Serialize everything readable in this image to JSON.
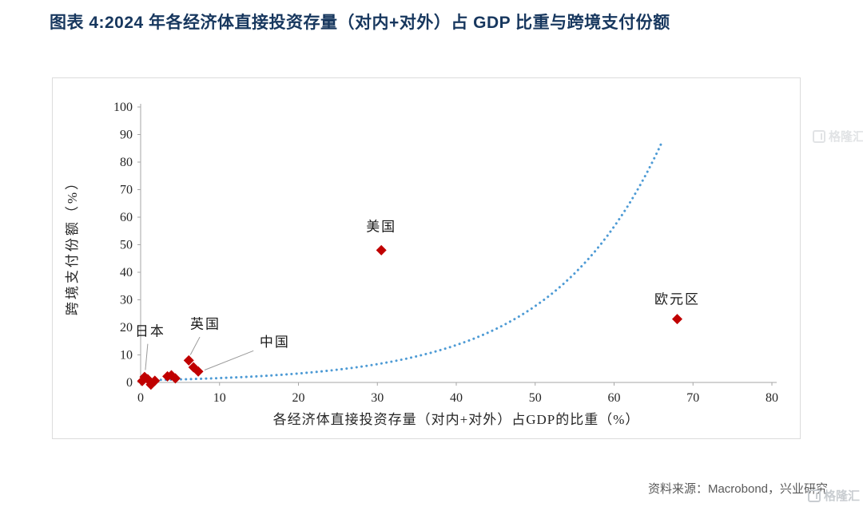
{
  "title": "图表  4:2024 年各经济体直接投资存量（对内+对外）占 GDP 比重与跨境支付份额",
  "source": "资料来源：Macrobond，兴业研究",
  "watermark": "格隆汇",
  "chart_data": {
    "type": "scatter",
    "title": "",
    "xlabel": "各经济体直接投资存量（对内+对外）占GDP的比重（%）",
    "ylabel": "跨境支付份额（%）",
    "xlim": [
      0,
      80
    ],
    "ylim": [
      0,
      100
    ],
    "xticks": [
      0,
      10,
      20,
      30,
      40,
      50,
      60,
      70,
      80
    ],
    "yticks": [
      0,
      10,
      20,
      30,
      40,
      50,
      60,
      70,
      80,
      90,
      100
    ],
    "grid": false,
    "marker_color": "#C00000",
    "trend_color": "#4E9BD5",
    "axis_color": "#A6A6A6",
    "points": [
      {
        "x": 0.2,
        "y": 0.5
      },
      {
        "x": 0.5,
        "y": 2.0
      },
      {
        "x": 0.9,
        "y": 1.2
      },
      {
        "x": 1.3,
        "y": -0.8
      },
      {
        "x": 1.8,
        "y": 0.6
      },
      {
        "x": 3.4,
        "y": 2.2
      },
      {
        "x": 3.9,
        "y": 2.6
      },
      {
        "x": 4.4,
        "y": 1.5
      },
      {
        "x": 6.1,
        "y": 8.0
      },
      {
        "x": 6.7,
        "y": 5.5
      },
      {
        "x": 7.3,
        "y": 4.0
      },
      {
        "x": 30.5,
        "y": 48.0
      },
      {
        "x": 68.0,
        "y": 23.0
      }
    ],
    "annotations": [
      {
        "text": "日本",
        "x": 1.2,
        "y": 17.0,
        "anchor": "middle",
        "leader": {
          "x1": 0.9,
          "y1": 14.0,
          "x2": 0.6,
          "y2": 4.5
        }
      },
      {
        "text": "英国",
        "x": 8.2,
        "y": 19.5,
        "anchor": "middle",
        "leader": {
          "x1": 7.5,
          "y1": 16.5,
          "x2": 6.3,
          "y2": 10.0
        }
      },
      {
        "text": "中国",
        "x": 17.0,
        "y": 13.0,
        "anchor": "middle",
        "leader": {
          "x1": 14.3,
          "y1": 11.5,
          "x2": 8.1,
          "y2": 4.5
        }
      },
      {
        "text": "美国",
        "x": 30.5,
        "y": 55.0,
        "anchor": "middle",
        "leader": null
      },
      {
        "text": "欧元区",
        "x": 68.0,
        "y": 28.5,
        "anchor": "middle",
        "leader": null
      }
    ],
    "trend": {
      "type": "exponential",
      "formula": "y = a * exp(b * x)",
      "a": 0.78,
      "b": 0.0714,
      "x_range": [
        0,
        66
      ],
      "style": "dotted"
    }
  }
}
